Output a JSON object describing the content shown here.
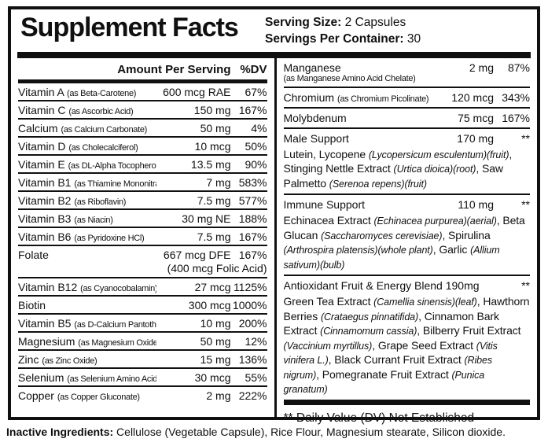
{
  "colors": {
    "ink": "#101010",
    "paper": "#ffffff"
  },
  "header": {
    "title": "Supplement Facts",
    "serving_size_label": "Serving Size:",
    "serving_size_value": "2 Capsules",
    "servings_per_container_label": "Servings Per Container:",
    "servings_per_container_value": "30"
  },
  "left_column": {
    "amount_header": "Amount Per Serving",
    "dv_header": "%DV",
    "rows": [
      {
        "name": "Vitamin A",
        "sub": "(as Beta-Carotene)",
        "amount": "600 mcg RAE",
        "dv": "67%"
      },
      {
        "name": "Vitamin C",
        "sub": "(as Ascorbic Acid)",
        "amount": "150 mg",
        "dv": "167%"
      },
      {
        "name": "Calcium",
        "sub": "(as Calcium Carbonate)",
        "amount": "50 mg",
        "dv": "4%"
      },
      {
        "name": "Vitamin D",
        "sub": "(as Cholecalciferol)",
        "amount": "10 mcg",
        "dv": "50%"
      },
      {
        "name": "Vitamin E",
        "sub": "(as DL-Alpha Tocopherol Acetate)",
        "amount": "13.5 mg",
        "dv": "90%"
      },
      {
        "name": "Vitamin B1",
        "sub": "(as Thiamine Mononitrate)",
        "amount": "7 mg",
        "dv": "583%"
      },
      {
        "name": "Vitamin B2",
        "sub": "(as Riboflavin)",
        "amount": "7.5 mg",
        "dv": "577%"
      },
      {
        "name": "Vitamin B3",
        "sub": "(as Niacin)",
        "amount": "30 mg NE",
        "dv": "188%"
      },
      {
        "name": "Vitamin B6",
        "sub": "(as Pyridoxine HCl)",
        "amount": "7.5 mg",
        "dv": "167%"
      },
      {
        "name": "Folate",
        "sub": "",
        "amount": "667 mcg DFE",
        "dv": "167%",
        "amount2": "(400 mcg Folic Acid)"
      },
      {
        "name": "Vitamin B12",
        "sub": "(as Cyanocobalamin)",
        "amount": "27 mcg",
        "dv": "1125%"
      },
      {
        "name": "Biotin",
        "sub": "",
        "amount": "300 mcg",
        "dv": "1000%"
      },
      {
        "name": "Vitamin B5",
        "sub": "(as D-Calcium Pantothenate)",
        "amount": "10 mg",
        "dv": "200%"
      },
      {
        "name": "Magnesium",
        "sub": "(as Magnesium Oxide)",
        "amount": "50 mg",
        "dv": "12%"
      },
      {
        "name": "Zinc",
        "sub": "(as Zinc Oxide)",
        "amount": "15 mg",
        "dv": "136%"
      },
      {
        "name": "Selenium",
        "sub": "(as Selenium Amino Acid Chelate)",
        "amount": "30 mcg",
        "dv": "55%"
      },
      {
        "name": "Copper",
        "sub": "(as Copper Gluconate)",
        "amount": "2 mg",
        "dv": "222%"
      }
    ]
  },
  "right_column": {
    "rows": [
      {
        "name": "Manganese",
        "sub_line": "(as Manganese Amino Acid Chelate)",
        "amount": "2 mg",
        "dv": "87%"
      },
      {
        "name": "Chromium",
        "sub": "(as Chromium Picolinate)",
        "amount": "120 mcg",
        "dv": "343%"
      },
      {
        "name": "Molybdenum",
        "amount": "75 mcg",
        "dv": "167%"
      },
      {
        "name": "Male Support",
        "amount": "170 mg",
        "dv": "**",
        "desc": "Lutein, Lycopene (Lycopersicum esculentum)(fruit), Stinging Nettle Extract (Urtica dioica)(root), Saw Palmetto (Serenoa repens)(fruit)"
      },
      {
        "name": "Immune Support",
        "amount": "110 mg",
        "dv": "**",
        "desc": "Echinacea Extract (Echinacea purpurea)(aerial), Beta Glucan (Saccharomyces cerevisiae), Spirulina (Arthrospira platensis)(whole plant), Garlic (Allium sativum)(bulb)"
      },
      {
        "name": "Antioxidant Fruit & Energy Blend 190mg",
        "dv": "**",
        "desc": "Green Tea Extract (Camellia sinensis)(leaf), Hawthorn Berries (Crataegus pinnatifida), Cinnamon Bark Extract (Cinnamomum cassia), Bilberry Fruit Extract (Vaccinium myrtillus), Grape Seed Extract (Vitis vinifera L.), Black Currant Fruit Extract (Ribes nigrum), Pomegranate Fruit Extract (Punica granatum)"
      }
    ],
    "footnote": "** Daily Value (DV) Not Established"
  },
  "inactive_ingredients": {
    "label": "Inactive Ingredients:",
    "text": "Cellulose (Vegetable Capsule), Rice Flour, Magnesium stearate, Silicon dioxide."
  }
}
